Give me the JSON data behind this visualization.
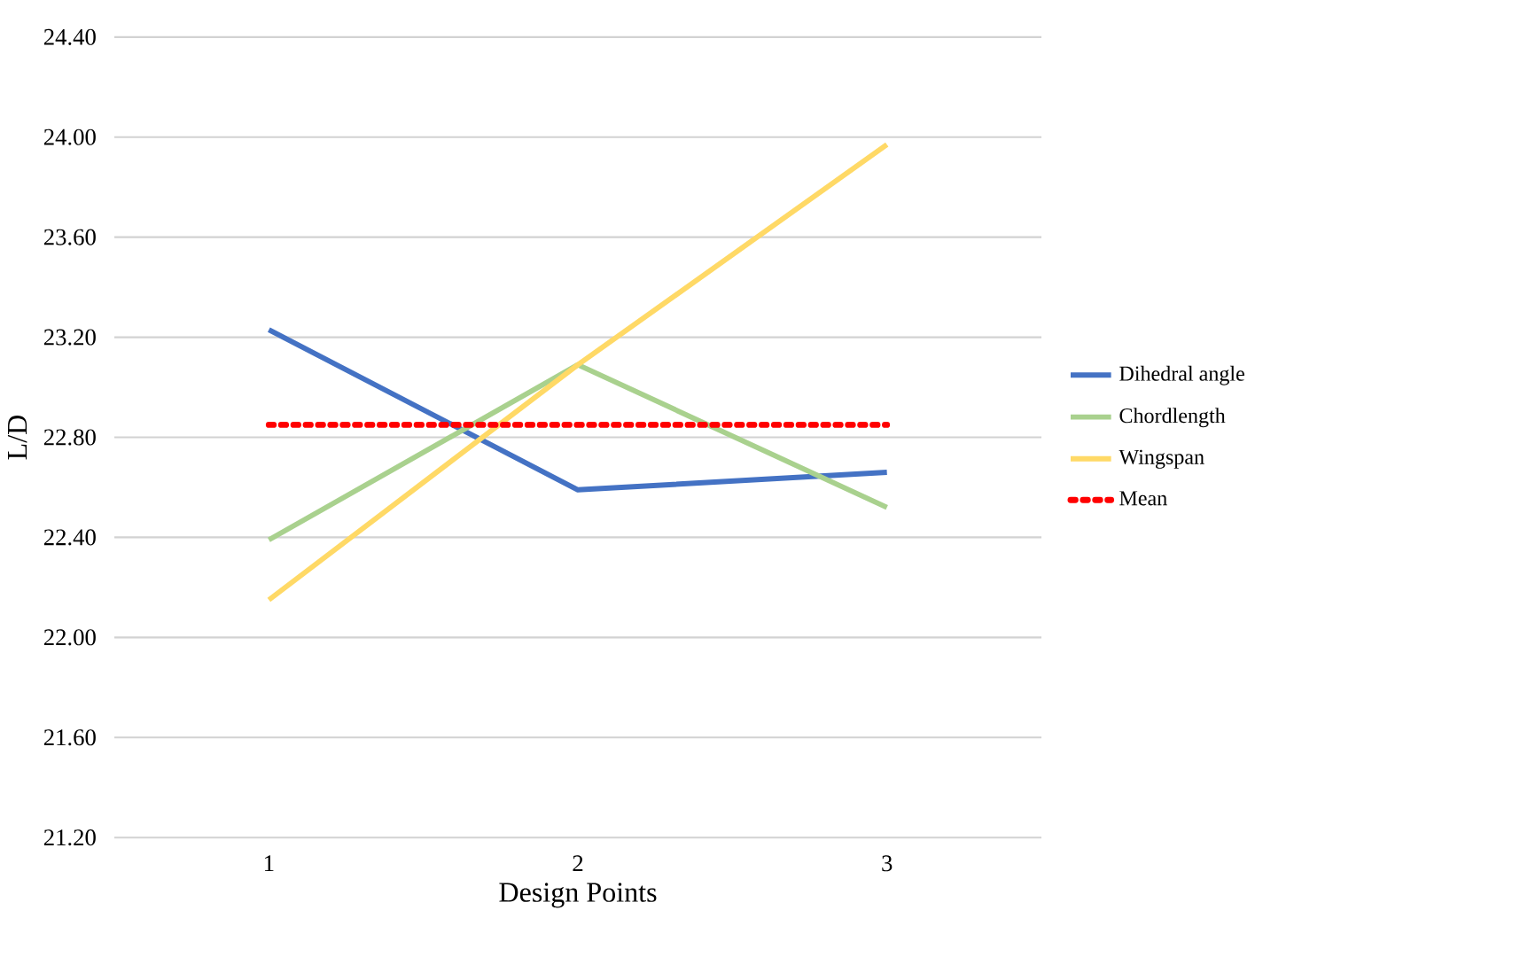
{
  "chart_data": {
    "type": "line",
    "xlabel": "Design Points",
    "ylabel": "L/D",
    "categories": [
      "1",
      "2",
      "3"
    ],
    "series": [
      {
        "name": "Dihedral angle",
        "color": "#4472c4",
        "values": [
          23.23,
          22.59,
          22.66
        ]
      },
      {
        "name": "Chordlength",
        "color": "#a9d18e",
        "values": [
          22.39,
          23.09,
          22.52
        ]
      },
      {
        "name": "Wingspan",
        "color": "#ffd966",
        "values": [
          22.15,
          23.09,
          23.97
        ]
      },
      {
        "name": "Mean",
        "color": "#ff0000",
        "values": [
          22.85,
          22.85,
          22.85
        ],
        "line_style": "dotted"
      }
    ],
    "ylim": [
      21.2,
      24.4
    ],
    "yticks": [
      {
        "value": 21.2,
        "label": "21.20"
      },
      {
        "value": 21.6,
        "label": "21.60"
      },
      {
        "value": 22.0,
        "label": "22.00"
      },
      {
        "value": 22.4,
        "label": "22.40"
      },
      {
        "value": 22.8,
        "label": "22.80"
      },
      {
        "value": 23.2,
        "label": "23.20"
      },
      {
        "value": 23.6,
        "label": "23.60"
      },
      {
        "value": 24.0,
        "label": "24.00"
      },
      {
        "value": 24.4,
        "label": "24.40"
      }
    ],
    "grid": "y",
    "legend": "right",
    "marker": "none"
  }
}
